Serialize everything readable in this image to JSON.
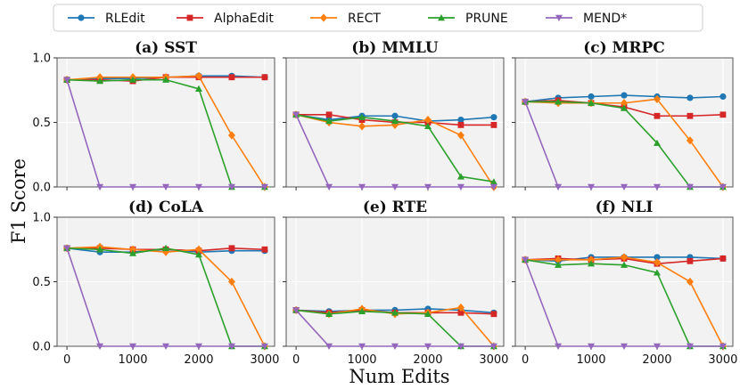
{
  "chart_data": {
    "type": "line",
    "ylabel": "F1 Score",
    "xlabel": "Num Edits",
    "x": [
      0,
      500,
      1000,
      1500,
      2000,
      2500,
      3000
    ],
    "xticks": [
      "0",
      "1000",
      "2000",
      "3000"
    ],
    "xtick_values": [
      0,
      1000,
      2000,
      3000
    ],
    "yticks": [
      "0.0",
      "0.5",
      "1.0"
    ],
    "ytick_values": [
      0,
      0.5,
      1.0
    ],
    "xlim": [
      -150,
      3150
    ],
    "ylim": [
      0,
      1.0
    ],
    "legend": [
      {
        "name": "RLEdit",
        "color": "#1f77b4",
        "marker": "circle"
      },
      {
        "name": "AlphaEdit",
        "color": "#d62728",
        "marker": "square"
      },
      {
        "name": "RECT",
        "color": "#ff7f0e",
        "marker": "diamond"
      },
      {
        "name": "PRUNE",
        "color": "#2ca02c",
        "marker": "triangle-up"
      },
      {
        "name": "MEND*",
        "color": "#9467bd",
        "marker": "triangle-down"
      }
    ],
    "panels": [
      {
        "title": "(a) SST",
        "series": [
          {
            "name": "RLEdit",
            "values": [
              0.83,
              0.84,
              0.84,
              0.85,
              0.86,
              0.86,
              0.85
            ]
          },
          {
            "name": "AlphaEdit",
            "values": [
              0.83,
              0.83,
              0.82,
              0.85,
              0.85,
              0.85,
              0.85
            ]
          },
          {
            "name": "RECT",
            "values": [
              0.83,
              0.85,
              0.85,
              0.85,
              0.86,
              0.4,
              0.0
            ]
          },
          {
            "name": "PRUNE",
            "values": [
              0.83,
              0.82,
              0.83,
              0.83,
              0.76,
              0.0,
              0.0
            ]
          },
          {
            "name": "MEND*",
            "values": [
              0.83,
              0.0,
              0.0,
              0.0,
              0.0,
              0.0,
              0.0
            ]
          }
        ]
      },
      {
        "title": "(b) MMLU",
        "series": [
          {
            "name": "RLEdit",
            "values": [
              0.56,
              0.52,
              0.55,
              0.55,
              0.51,
              0.52,
              0.54
            ]
          },
          {
            "name": "AlphaEdit",
            "values": [
              0.56,
              0.56,
              0.52,
              0.5,
              0.5,
              0.48,
              0.48
            ]
          },
          {
            "name": "RECT",
            "values": [
              0.56,
              0.5,
              0.47,
              0.48,
              0.52,
              0.4,
              0.0
            ]
          },
          {
            "name": "PRUNE",
            "values": [
              0.56,
              0.51,
              0.54,
              0.51,
              0.47,
              0.08,
              0.04
            ]
          },
          {
            "name": "MEND*",
            "values": [
              0.56,
              0.0,
              0.0,
              0.0,
              0.0,
              0.0,
              0.0
            ]
          }
        ]
      },
      {
        "title": "(c) MRPC",
        "series": [
          {
            "name": "RLEdit",
            "values": [
              0.66,
              0.69,
              0.7,
              0.71,
              0.7,
              0.69,
              0.7
            ]
          },
          {
            "name": "AlphaEdit",
            "values": [
              0.66,
              0.67,
              0.65,
              0.62,
              0.55,
              0.55,
              0.56
            ]
          },
          {
            "name": "RECT",
            "values": [
              0.66,
              0.65,
              0.65,
              0.65,
              0.68,
              0.36,
              0.0
            ]
          },
          {
            "name": "PRUNE",
            "values": [
              0.66,
              0.66,
              0.65,
              0.61,
              0.34,
              0.0,
              0.0
            ]
          },
          {
            "name": "MEND*",
            "values": [
              0.66,
              0.0,
              0.0,
              0.0,
              0.0,
              0.0,
              0.0
            ]
          }
        ]
      },
      {
        "title": "(d) CoLA",
        "series": [
          {
            "name": "RLEdit",
            "values": [
              0.76,
              0.73,
              0.73,
              0.75,
              0.73,
              0.74,
              0.74
            ]
          },
          {
            "name": "AlphaEdit",
            "values": [
              0.76,
              0.76,
              0.75,
              0.75,
              0.74,
              0.76,
              0.75
            ]
          },
          {
            "name": "RECT",
            "values": [
              0.76,
              0.77,
              0.75,
              0.73,
              0.75,
              0.5,
              0.0
            ]
          },
          {
            "name": "PRUNE",
            "values": [
              0.76,
              0.75,
              0.72,
              0.76,
              0.71,
              0.0,
              0.0
            ]
          },
          {
            "name": "MEND*",
            "values": [
              0.76,
              0.0,
              0.0,
              0.0,
              0.0,
              0.0,
              0.0
            ]
          }
        ]
      },
      {
        "title": "(e) RTE",
        "series": [
          {
            "name": "RLEdit",
            "values": [
              0.28,
              0.27,
              0.28,
              0.28,
              0.29,
              0.28,
              0.26
            ]
          },
          {
            "name": "AlphaEdit",
            "values": [
              0.28,
              0.26,
              0.28,
              0.26,
              0.26,
              0.26,
              0.25
            ]
          },
          {
            "name": "RECT",
            "values": [
              0.28,
              0.25,
              0.29,
              0.25,
              0.26,
              0.3,
              0.0
            ]
          },
          {
            "name": "PRUNE",
            "values": [
              0.28,
              0.25,
              0.27,
              0.26,
              0.25,
              0.0,
              0.0
            ]
          },
          {
            "name": "MEND*",
            "values": [
              0.28,
              0.0,
              0.0,
              0.0,
              0.0,
              0.0,
              0.0
            ]
          }
        ]
      },
      {
        "title": "(f) NLI",
        "series": [
          {
            "name": "RLEdit",
            "values": [
              0.67,
              0.66,
              0.69,
              0.69,
              0.69,
              0.69,
              0.68
            ]
          },
          {
            "name": "AlphaEdit",
            "values": [
              0.67,
              0.68,
              0.67,
              0.68,
              0.64,
              0.66,
              0.68
            ]
          },
          {
            "name": "RECT",
            "values": [
              0.67,
              0.67,
              0.67,
              0.69,
              0.65,
              0.5,
              0.0
            ]
          },
          {
            "name": "PRUNE",
            "values": [
              0.67,
              0.63,
              0.64,
              0.63,
              0.57,
              0.0,
              0.0
            ]
          },
          {
            "name": "MEND*",
            "values": [
              0.67,
              0.0,
              0.0,
              0.0,
              0.0,
              0.0,
              0.0
            ]
          }
        ]
      }
    ]
  }
}
